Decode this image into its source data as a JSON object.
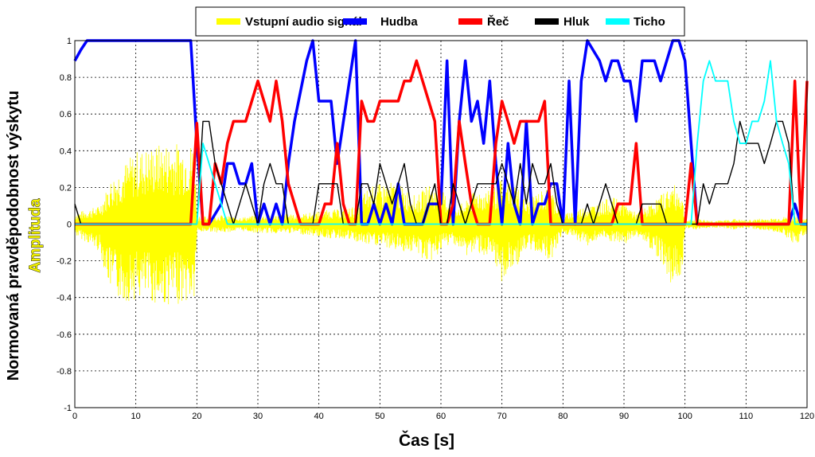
{
  "chart_data": {
    "type": "line",
    "xlabel": "Čas [s]",
    "ylabel": "Normovaná pravděpodobnost výskytu",
    "ylabel_secondary": "Amplituda",
    "xlim": [
      0,
      120
    ],
    "ylim": [
      -1,
      1
    ],
    "x_ticks": [
      0,
      10,
      20,
      30,
      40,
      50,
      60,
      70,
      80,
      90,
      100,
      110,
      120
    ],
    "y_ticks": [
      -1,
      -0.8,
      -0.6,
      -0.4,
      -0.2,
      0,
      0.2,
      0.4,
      0.6,
      0.8,
      1
    ],
    "x_tick_labels": [
      "0",
      "10",
      "20",
      "30",
      "40",
      "50",
      "60",
      "70",
      "80",
      "90",
      "100",
      "110",
      "120"
    ],
    "y_tick_labels": [
      "-1",
      "-0.8",
      "-0.6",
      "-0.4",
      "-0.2",
      "0",
      "0.2",
      "0.4",
      "0.6",
      "0.8",
      "1"
    ],
    "grid": true,
    "legend_position": "top-center",
    "legend": [
      {
        "name": "Vstupní audio signál",
        "color": "#ffff00"
      },
      {
        "name": "Hudba",
        "color": "#0000ff"
      },
      {
        "name": "Řeč",
        "color": "#ff0000"
      },
      {
        "name": "Hluk",
        "color": "#000000"
      },
      {
        "name": "Ticho",
        "color": "#00ffff"
      }
    ],
    "audio_envelope": {
      "name": "Vstupní audio signál",
      "color": "#ffff00",
      "t": [
        0,
        2,
        4,
        6,
        8,
        10,
        12,
        14,
        16,
        18,
        19.6,
        20,
        22,
        24,
        26,
        28,
        30,
        32,
        34,
        36,
        38,
        40,
        42,
        44,
        46,
        48,
        50,
        52,
        54,
        56,
        58,
        60,
        62,
        64,
        66,
        68,
        70,
        72,
        74,
        76,
        78,
        80,
        82,
        84,
        86,
        88,
        90,
        92,
        94,
        96,
        98,
        99.5,
        100,
        102,
        104,
        106,
        108,
        110,
        112,
        114,
        116,
        118,
        120
      ],
      "upper": [
        0.06,
        0.08,
        0.1,
        0.25,
        0.33,
        0.4,
        0.42,
        0.44,
        0.45,
        0.44,
        0.45,
        0.05,
        0.04,
        0.05,
        0.04,
        0.04,
        0.05,
        0.05,
        0.06,
        0.05,
        0.06,
        0.07,
        0.08,
        0.08,
        0.1,
        0.2,
        0.22,
        0.23,
        0.2,
        0.15,
        0.22,
        0.2,
        0.1,
        0.12,
        0.2,
        0.18,
        0.25,
        0.24,
        0.12,
        0.18,
        0.2,
        0.05,
        0.08,
        0.1,
        0.12,
        0.15,
        0.12,
        0.06,
        0.1,
        0.16,
        0.22,
        0.18,
        0.02,
        0.03,
        0.02,
        0.02,
        0.03,
        0.02,
        0.03,
        0.03,
        0.04,
        0.04,
        0.03
      ],
      "lower": [
        -0.06,
        -0.1,
        -0.15,
        -0.38,
        -0.43,
        -0.41,
        -0.42,
        -0.45,
        -0.44,
        -0.43,
        -0.43,
        -0.05,
        -0.04,
        -0.05,
        -0.04,
        -0.04,
        -0.05,
        -0.05,
        -0.05,
        -0.05,
        -0.06,
        -0.07,
        -0.08,
        -0.08,
        -0.1,
        -0.12,
        -0.12,
        -0.14,
        -0.15,
        -0.16,
        -0.22,
        -0.15,
        -0.1,
        -0.18,
        -0.15,
        -0.2,
        -0.32,
        -0.25,
        -0.15,
        -0.15,
        -0.2,
        -0.05,
        -0.08,
        -0.12,
        -0.08,
        -0.1,
        -0.12,
        -0.06,
        -0.12,
        -0.2,
        -0.35,
        -0.28,
        -0.02,
        -0.03,
        -0.02,
        -0.02,
        -0.03,
        -0.02,
        -0.03,
        -0.04,
        -0.05,
        -0.12,
        -0.05
      ]
    },
    "series": [
      {
        "name": "Hudba",
        "color": "#0000ff",
        "width": 3.5,
        "x": [
          0,
          1,
          2,
          19,
          20,
          21,
          22,
          24,
          25,
          26,
          27,
          28,
          29,
          30,
          31,
          32,
          33,
          34,
          35,
          36,
          38,
          39,
          40,
          41,
          42,
          43,
          45,
          46,
          47,
          48,
          49,
          50,
          51,
          52,
          53,
          54,
          55,
          56,
          57,
          58,
          59,
          60,
          61,
          62,
          63,
          64,
          65,
          66,
          67,
          68,
          69,
          70,
          71,
          72,
          73,
          74,
          75,
          76,
          77,
          78,
          79,
          80,
          81,
          82,
          83,
          84,
          86,
          87,
          88,
          89,
          90,
          91,
          92,
          93,
          94,
          95,
          96,
          98,
          99,
          100,
          101,
          102,
          103,
          104,
          110,
          112,
          114,
          116,
          117,
          118,
          119,
          120
        ],
        "y": [
          0.89,
          0.95,
          1.0,
          1.0,
          0.44,
          0.0,
          0.0,
          0.11,
          0.33,
          0.33,
          0.22,
          0.22,
          0.33,
          0.0,
          0.11,
          0.0,
          0.11,
          0.0,
          0.33,
          0.56,
          0.89,
          1.0,
          0.67,
          0.67,
          0.67,
          0.33,
          0.78,
          1.0,
          0.0,
          0.0,
          0.11,
          0.0,
          0.11,
          0.0,
          0.22,
          0.0,
          0.0,
          0.0,
          0.0,
          0.11,
          0.11,
          0.11,
          0.89,
          0.0,
          0.56,
          0.89,
          0.56,
          0.67,
          0.44,
          0.78,
          0.33,
          0.0,
          0.44,
          0.11,
          0.0,
          0.56,
          0.0,
          0.11,
          0.11,
          0.22,
          0.22,
          0.0,
          0.78,
          0.0,
          0.78,
          1.0,
          0.89,
          0.78,
          0.89,
          0.89,
          0.78,
          0.78,
          0.56,
          0.89,
          0.89,
          0.89,
          0.78,
          1.0,
          1.0,
          0.89,
          0.44,
          0.0,
          0.0,
          0.0,
          0.0,
          0.0,
          0.0,
          0.0,
          0.0,
          0.11,
          0.0,
          0.0
        ]
      },
      {
        "name": "Řeč",
        "color": "#ff0000",
        "width": 3.5,
        "x": [
          0,
          19,
          20,
          21,
          22,
          23,
          24,
          25,
          26,
          27,
          28,
          29,
          30,
          31,
          32,
          33,
          34,
          35,
          36,
          37,
          38,
          39,
          40,
          41,
          42,
          43,
          44,
          45,
          46,
          47,
          48,
          49,
          50,
          51,
          52,
          53,
          54,
          55,
          56,
          57,
          58,
          59,
          60,
          61,
          62,
          63,
          64,
          65,
          66,
          67,
          68,
          69,
          70,
          71,
          72,
          73,
          74,
          75,
          76,
          77,
          78,
          79,
          80,
          81,
          82,
          83,
          84,
          85,
          86,
          87,
          88,
          89,
          90,
          91,
          92,
          93,
          94,
          95,
          96,
          97,
          98,
          99,
          100,
          101,
          102,
          103,
          117,
          118,
          119,
          120
        ],
        "y": [
          0.0,
          0.0,
          0.55,
          0.0,
          0.0,
          0.33,
          0.22,
          0.44,
          0.56,
          0.56,
          0.56,
          0.67,
          0.78,
          0.67,
          0.56,
          0.78,
          0.56,
          0.22,
          0.11,
          0.0,
          0.0,
          0.0,
          0.0,
          0.11,
          0.11,
          0.44,
          0.11,
          0.0,
          0.0,
          0.67,
          0.56,
          0.56,
          0.67,
          0.67,
          0.67,
          0.67,
          0.78,
          0.78,
          0.89,
          0.78,
          0.67,
          0.56,
          0.0,
          0.0,
          0.11,
          0.56,
          0.33,
          0.11,
          0.0,
          0.0,
          0.0,
          0.44,
          0.67,
          0.56,
          0.44,
          0.56,
          0.56,
          0.56,
          0.56,
          0.67,
          0.0,
          0.0,
          0.0,
          0.0,
          0.0,
          0.0,
          0.0,
          0.0,
          0.0,
          0.0,
          0.0,
          0.11,
          0.11,
          0.11,
          0.44,
          0.0,
          0.0,
          0.0,
          0.0,
          0.0,
          0.0,
          0.0,
          0.0,
          0.33,
          0.0,
          0.0,
          0.0,
          0.78,
          0.0,
          0.78
        ]
      },
      {
        "name": "Hluk",
        "color": "#000000",
        "width": 1.4,
        "x": [
          0,
          1,
          19,
          20,
          21,
          22,
          23,
          24,
          25,
          26,
          27,
          28,
          29,
          30,
          31,
          32,
          33,
          34,
          35,
          36,
          37,
          38,
          39,
          40,
          41,
          42,
          43,
          44,
          45,
          46,
          47,
          48,
          49,
          50,
          51,
          52,
          53,
          54,
          55,
          56,
          57,
          58,
          59,
          60,
          61,
          62,
          63,
          64,
          65,
          66,
          67,
          68,
          69,
          70,
          71,
          72,
          73,
          74,
          75,
          76,
          77,
          78,
          79,
          80,
          81,
          82,
          83,
          84,
          85,
          86,
          87,
          88,
          89,
          90,
          91,
          92,
          93,
          94,
          95,
          96,
          97,
          98,
          99,
          100,
          101,
          102,
          103,
          104,
          105,
          106,
          107,
          108,
          109,
          110,
          111,
          112,
          113,
          114,
          115,
          116,
          117,
          118,
          119,
          120
        ],
        "y": [
          0.11,
          0.0,
          0.0,
          0.0,
          0.56,
          0.56,
          0.33,
          0.22,
          0.11,
          0.0,
          0.11,
          0.22,
          0.11,
          0.0,
          0.22,
          0.33,
          0.22,
          0.22,
          0.0,
          0.0,
          0.0,
          0.0,
          0.0,
          0.22,
          0.22,
          0.22,
          0.22,
          0.0,
          0.0,
          0.0,
          0.22,
          0.22,
          0.11,
          0.33,
          0.22,
          0.11,
          0.22,
          0.33,
          0.11,
          0.0,
          0.0,
          0.11,
          0.22,
          0.0,
          0.0,
          0.22,
          0.11,
          0.0,
          0.11,
          0.22,
          0.22,
          0.22,
          0.22,
          0.33,
          0.22,
          0.11,
          0.33,
          0.11,
          0.33,
          0.22,
          0.22,
          0.33,
          0.11,
          0.0,
          0.0,
          0.0,
          0.0,
          0.11,
          0.0,
          0.11,
          0.22,
          0.11,
          0.0,
          0.0,
          0.0,
          0.0,
          0.11,
          0.11,
          0.11,
          0.11,
          0.0,
          0.0,
          0.0,
          0.0,
          0.0,
          0.0,
          0.22,
          0.11,
          0.22,
          0.22,
          0.22,
          0.33,
          0.56,
          0.44,
          0.44,
          0.44,
          0.33,
          0.44,
          0.56,
          0.56,
          0.44,
          0.0,
          0.0,
          0.0
        ]
      },
      {
        "name": "Ticho",
        "color": "#00ffff",
        "width": 1.8,
        "x": [
          0,
          20,
          21,
          22,
          23,
          24,
          25,
          26,
          27,
          101,
          102,
          103,
          104,
          105,
          106,
          107,
          108,
          109,
          110,
          111,
          112,
          113,
          114,
          115,
          116,
          117,
          118,
          119,
          120
        ],
        "y": [
          0.0,
          0.0,
          0.44,
          0.33,
          0.22,
          0.11,
          0.0,
          0.0,
          0.0,
          0.0,
          0.44,
          0.78,
          0.89,
          0.78,
          0.78,
          0.78,
          0.56,
          0.44,
          0.44,
          0.56,
          0.56,
          0.67,
          0.89,
          0.56,
          0.44,
          0.33,
          0.0,
          0.0,
          0.0
        ]
      }
    ]
  }
}
